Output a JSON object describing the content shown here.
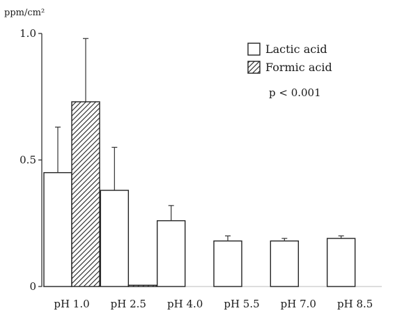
{
  "chart_data": {
    "type": "bar",
    "title": "",
    "xlabel": "",
    "ylabel": "ppm/cm²",
    "ylim": [
      0,
      1.0
    ],
    "yticks": [
      {
        "value": 0,
        "label": "0"
      },
      {
        "value": 0.5,
        "label": "0.5"
      },
      {
        "value": 1.0,
        "label": "1.0"
      }
    ],
    "categories": [
      "pH 1.0",
      "pH 2.5",
      "pH 4.0",
      "pH 5.5",
      "pH 7.0",
      "pH 8.5"
    ],
    "series": [
      {
        "name": "Lactic acid",
        "style": "open",
        "values": [
          0.45,
          0.38,
          0.26,
          0.18,
          0.18,
          0.19
        ],
        "errors": [
          0.18,
          0.17,
          0.06,
          0.02,
          0.01,
          0.01
        ]
      },
      {
        "name": "Formic acid",
        "style": "hatched",
        "values": [
          0.73,
          0.005,
          null,
          null,
          null,
          null
        ],
        "errors": [
          0.25,
          null,
          null,
          null,
          null,
          null
        ]
      }
    ],
    "legend_position": "top-right",
    "annotation": "p < 0.001",
    "grid": false
  }
}
